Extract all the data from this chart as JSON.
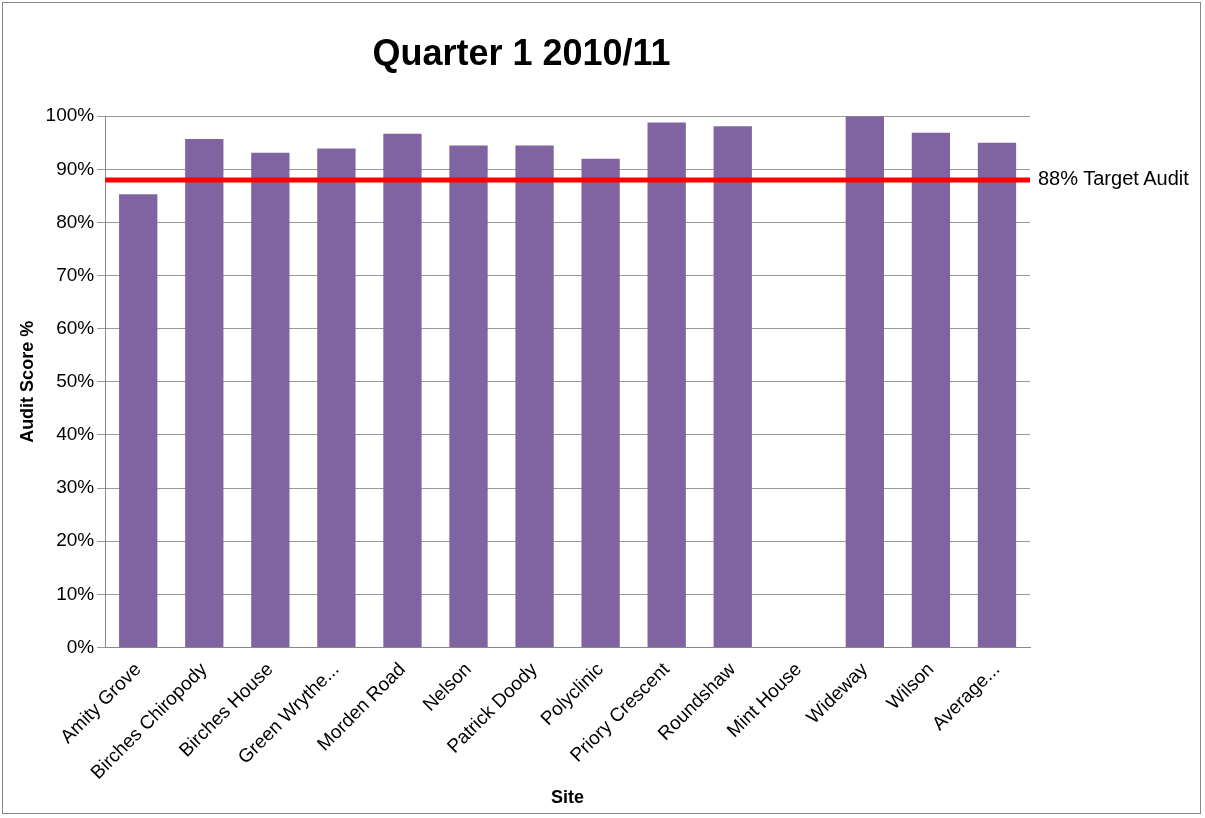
{
  "chart_data": {
    "type": "bar",
    "title": "Quarter 1 2010/11",
    "xlabel": "Site",
    "ylabel": "Audit Score %",
    "categories": [
      "Amity Grove",
      "Birches Chiropody",
      "Birches House",
      "Green Wrythe...",
      "Morden Road",
      "Nelson",
      "Patrick Doody",
      "Polyclinic",
      "Priory Crescent",
      "Roundshaw",
      "Mint House",
      "Wideway",
      "Wilson",
      "Average..."
    ],
    "values": [
      85.3,
      95.7,
      93.1,
      93.9,
      96.7,
      94.5,
      94.5,
      92.0,
      98.8,
      98.1,
      null,
      100,
      96.9,
      95.0
    ],
    "color": "#8064a2",
    "ylim": [
      0,
      100
    ],
    "yticks": [
      {
        "value": 0,
        "label": "0%"
      },
      {
        "value": 10,
        "label": "10%"
      },
      {
        "value": 20,
        "label": "20%"
      },
      {
        "value": 30,
        "label": "30%"
      },
      {
        "value": 40,
        "label": "40%"
      },
      {
        "value": 50,
        "label": "50%"
      },
      {
        "value": 60,
        "label": "60%"
      },
      {
        "value": 70,
        "label": "70%"
      },
      {
        "value": 80,
        "label": "80%"
      },
      {
        "value": 90,
        "label": "90%"
      },
      {
        "value": 100,
        "label": "100%"
      }
    ],
    "grid": "y",
    "ref_lines": [
      {
        "axis": "y",
        "value": 88,
        "label": "88% Target Audit",
        "color": "#ff0000"
      }
    ]
  }
}
